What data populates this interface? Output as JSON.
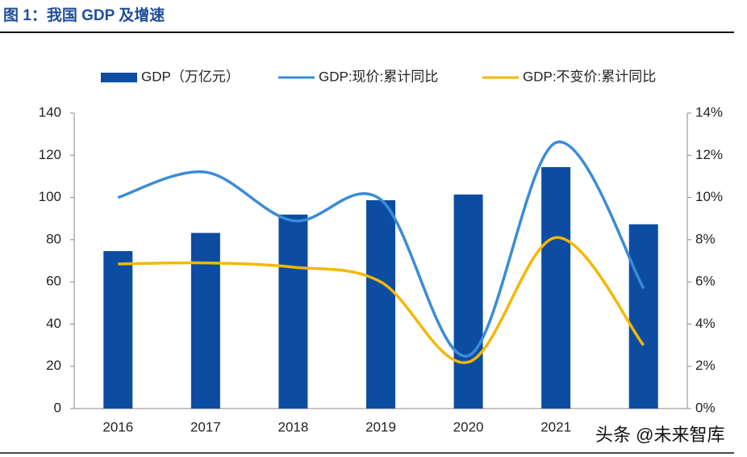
{
  "page_title": "图 1：我国 GDP 及增速",
  "watermark": "头条 @未来智库",
  "chart_data": {
    "type": "bar-line",
    "categories": [
      "2016",
      "2017",
      "2018",
      "2019",
      "2020",
      "2021",
      null
    ],
    "series": [
      {
        "name": "GDP（万亿元）",
        "type": "bar",
        "color": "#0c4da2",
        "values": [
          74.6,
          83.2,
          91.9,
          98.7,
          101.4,
          114.4,
          87.3
        ]
      },
      {
        "name": "GDP:现价:累计同比",
        "type": "line",
        "axis": "y2",
        "color": "#3b8bd8",
        "values": [
          10.0,
          11.2,
          8.9,
          9.9,
          2.5,
          12.6,
          5.7
        ]
      },
      {
        "name": "GDP:不变价:累计同比",
        "type": "line",
        "axis": "y2",
        "color": "#f5b700",
        "values": [
          6.85,
          6.9,
          6.7,
          6.0,
          2.2,
          8.1,
          3.0
        ]
      }
    ],
    "ylim": [
      0,
      140
    ],
    "yticks": [
      0,
      20,
      40,
      60,
      80,
      100,
      120,
      140
    ],
    "y2lim": [
      0,
      14
    ],
    "y2ticks": [
      {
        "value": 0,
        "label": "0%"
      },
      {
        "value": 2,
        "label": "2%"
      },
      {
        "value": 4,
        "label": "4%"
      },
      {
        "value": 6,
        "label": "6%"
      },
      {
        "value": 8,
        "label": "8%"
      },
      {
        "value": 10,
        "label": "10%"
      },
      {
        "value": 12,
        "label": "12%"
      },
      {
        "value": 14,
        "label": "14%"
      }
    ],
    "legend": "top"
  }
}
